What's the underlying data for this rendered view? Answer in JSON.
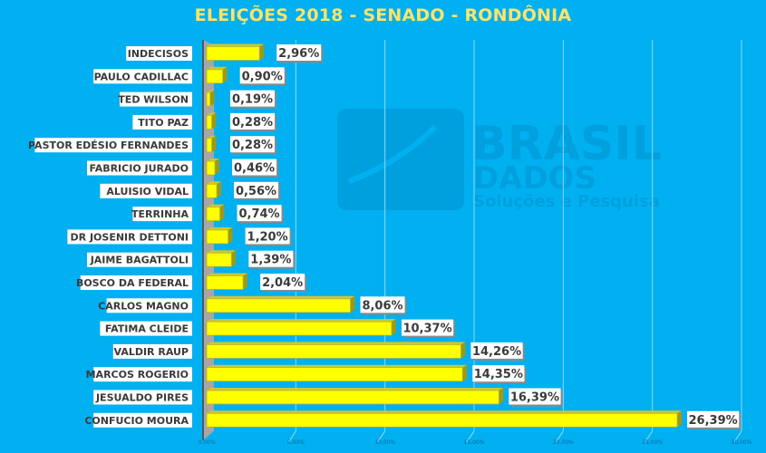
{
  "chart_data": {
    "type": "bar",
    "orientation": "horizontal",
    "title": "ELEIÇÕES 2018 - SENADO - RONDÔNIA",
    "xlabel": "",
    "ylabel": "",
    "xlim": [
      0,
      30
    ],
    "x_ticks": [
      "0,00%",
      "5,00%",
      "10,00%",
      "15,00%",
      "20,00%",
      "25,00%",
      "30,00%"
    ],
    "grid": true,
    "legend": "none",
    "categories": [
      "INDECISOS",
      "PAULO CADILLAC",
      "TED WILSON",
      "TITO PAZ",
      "PASTOR EDÉSIO FERNANDES",
      "FABRICIO JURADO",
      "ALUISIO VIDAL",
      "TERRINHA",
      "DR JOSENIR DETTONI",
      "JAIME BAGATTOLI",
      "BOSCO DA FEDERAL",
      "CARLOS MAGNO",
      "FATIMA CLEIDE",
      "VALDIR RAUP",
      "MARCOS ROGERIO",
      "JESUALDO PIRES",
      "CONFUCIO MOURA"
    ],
    "values": [
      2.96,
      0.9,
      0.19,
      0.28,
      0.28,
      0.46,
      0.56,
      0.74,
      1.2,
      1.39,
      2.04,
      8.06,
      10.37,
      14.26,
      14.35,
      16.39,
      26.39
    ],
    "data_labels": [
      "2,96%",
      "0,90%",
      "0,19%",
      "0,28%",
      "0,28%",
      "0,46%",
      "0,56%",
      "0,74%",
      "1,20%",
      "1,39%",
      "2,04%",
      "8,06%",
      "10,37%",
      "14,26%",
      "14,35%",
      "16,39%",
      "26,39%"
    ],
    "colors": {
      "background": "#00b0f0",
      "bar": "#ffff00",
      "bar_side": "#9a9a1a",
      "gridline": "#8fd9f5",
      "axis_wall": "#a6a6a6",
      "title": "#ffe36b",
      "label_bg": "#ffffff",
      "label_text": "#3a3a3a"
    }
  },
  "watermark": {
    "line1": "BRASIL",
    "line2": "DADOS",
    "line3": "Soluções e Pesquisa"
  }
}
